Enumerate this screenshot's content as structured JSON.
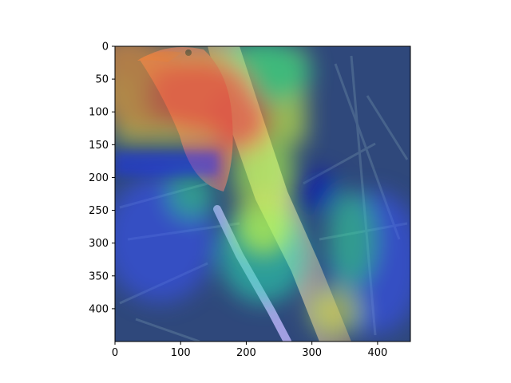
{
  "figure": {
    "kind": "heatmap-overlay-on-photo",
    "subject": "bird perched on a branch with saliency heatmap overlay",
    "colormap": "jet",
    "background": "#ffffff"
  },
  "chart_data": {
    "type": "heatmap",
    "title": "",
    "xlabel": "",
    "ylabel": "",
    "xlim": [
      0,
      450
    ],
    "ylim": [
      450,
      0
    ],
    "grid": false,
    "x_ticks": [
      0,
      100,
      200,
      300,
      400
    ],
    "y_ticks": [
      0,
      50,
      100,
      150,
      200,
      250,
      300,
      350,
      400
    ]
  }
}
